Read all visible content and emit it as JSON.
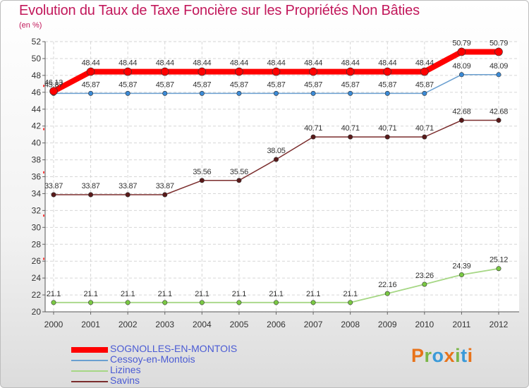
{
  "chart_data": {
    "type": "line",
    "title": "Evolution du Taux de Taxe Foncière sur les Propriétés Non Bâties",
    "ylabel": "(en %)",
    "xlabel": "",
    "x": [
      "2000",
      "2001",
      "2002",
      "2003",
      "2004",
      "2005",
      "2006",
      "2007",
      "2008",
      "2009",
      "2010",
      "2011",
      "2012"
    ],
    "ylim": [
      20,
      52
    ],
    "yticks": [
      20,
      22,
      24,
      26,
      28,
      30,
      32,
      34,
      36,
      38,
      40,
      42,
      44,
      46,
      48,
      50,
      52
    ],
    "grid": true,
    "legend_position": "bottom-left",
    "series": [
      {
        "name": "SOGNOLLES-EN-MONTOIS",
        "color": "#ff0000",
        "values": [
          46.13,
          48.44,
          48.44,
          48.44,
          48.44,
          48.44,
          48.44,
          48.44,
          48.44,
          48.44,
          48.44,
          50.79,
          50.79
        ],
        "labels": [
          "46.13",
          "48.44",
          "48.44",
          "48.44",
          "48.44",
          "48.44",
          "48.44",
          "48.44",
          "48.44",
          "48.44",
          "48.44",
          "50.79",
          "50.79"
        ]
      },
      {
        "name": "Cessoy-en-Montois",
        "color": "#6a9fd0",
        "values": [
          45.87,
          45.87,
          45.87,
          45.87,
          45.87,
          45.87,
          45.87,
          45.87,
          45.87,
          45.87,
          45.87,
          48.09,
          48.09
        ],
        "labels": [
          "45.87",
          "45.87",
          "45.87",
          "45.87",
          "45.87",
          "45.87",
          "45.87",
          "45.87",
          "45.87",
          "45.87",
          "45.87",
          "48.09",
          "48.09"
        ]
      },
      {
        "name": "Lizines",
        "color": "#a6d785",
        "values": [
          21.1,
          21.1,
          21.1,
          21.1,
          21.1,
          21.1,
          21.1,
          21.1,
          21.1,
          22.16,
          23.26,
          24.39,
          25.12
        ],
        "labels": [
          "21.1",
          "21.1",
          "21.1",
          "21.1",
          "21.1",
          "21.1",
          "21.1",
          "21.1",
          "21.1",
          "22.16",
          "23.26",
          "24.39",
          "25.12"
        ]
      },
      {
        "name": "Savins",
        "color": "#7b2d2d",
        "values": [
          33.87,
          33.87,
          33.87,
          33.87,
          35.56,
          35.56,
          38.05,
          40.71,
          40.71,
          40.71,
          40.71,
          42.68,
          42.68
        ],
        "labels": [
          "33.87",
          "33.87",
          "33.87",
          "33.87",
          "35.56",
          "35.56",
          "38.05",
          "40.71",
          "40.71",
          "40.71",
          "40.71",
          "42.68",
          "42.68"
        ]
      }
    ]
  },
  "logo": {
    "parts": [
      {
        "text": "P",
        "color": "#e8731a"
      },
      {
        "text": "r",
        "color": "#7ab648"
      },
      {
        "text": "o",
        "color": "#3a9ad9"
      },
      {
        "text": "x",
        "color": "#e8731a"
      },
      {
        "text": "i",
        "color": "#7ab648"
      },
      {
        "text": "t",
        "color": "#3a9ad9"
      },
      {
        "text": "i",
        "color": "#e8731a"
      }
    ]
  }
}
